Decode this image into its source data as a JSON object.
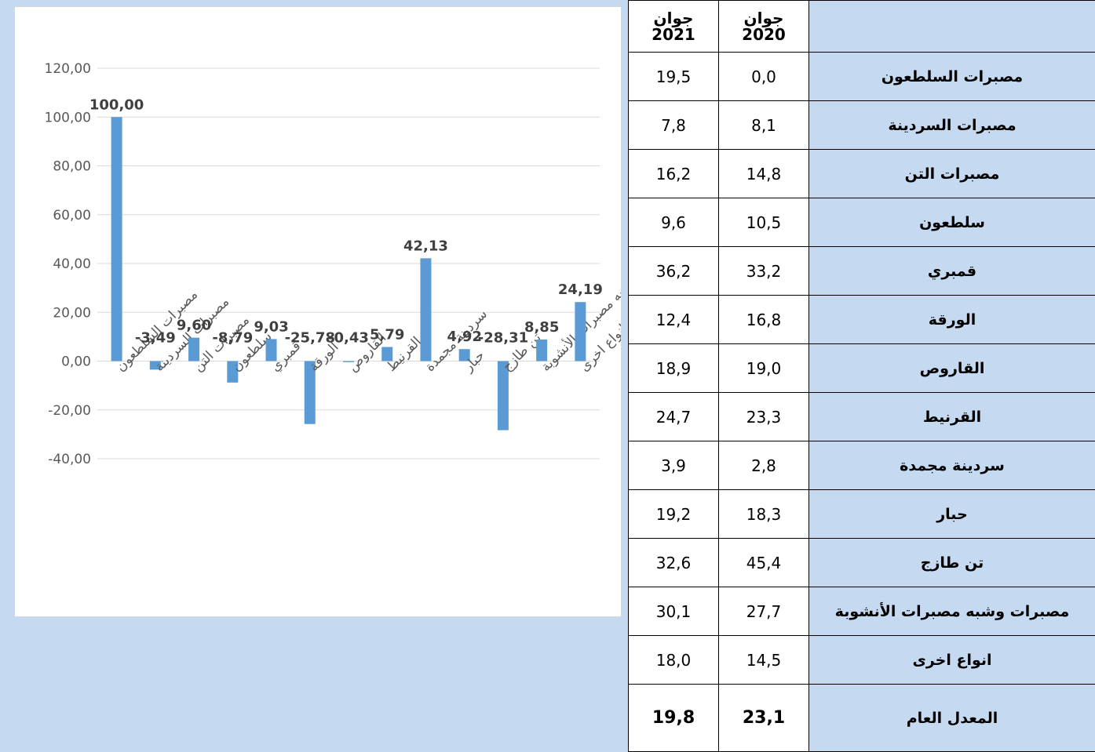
{
  "chart_data": {
    "type": "bar",
    "categories": [
      "مصبرات السلطعون",
      "مصبرات السردينة",
      "مصبرات التن",
      "سلطعون",
      "قمبري",
      "الورقة",
      "القاروص",
      "القرنيط",
      "سردينة مجمدة",
      "حبار",
      "تن طازج",
      "مصبرات وشبه مصبرات الأنشوبة",
      "انواع اخرى"
    ],
    "values": [
      100,
      -3.49,
      9.6,
      -8.79,
      9.03,
      -25.78,
      -0.43,
      5.79,
      42.13,
      4.92,
      -28.31,
      8.85,
      24.19
    ],
    "value_labels": [
      "100,00",
      "-3,49",
      "9,60",
      "-8,79",
      "9,03",
      "-25,78",
      "-0,43",
      "5,79",
      "42,13",
      "4,92",
      "-28,31",
      "8,85",
      "24,19"
    ],
    "color": "#5b9bd5",
    "ylim": [
      -40,
      120
    ],
    "yticks": [
      {
        "value": -40,
        "label": "-40,00"
      },
      {
        "value": -20,
        "label": "-20,00"
      },
      {
        "value": 0,
        "label": "0,00"
      },
      {
        "value": 20,
        "label": "20,00"
      },
      {
        "value": 40,
        "label": "40,00"
      },
      {
        "value": 60,
        "label": "60,00"
      },
      {
        "value": 80,
        "label": "80,00"
      },
      {
        "value": 100,
        "label": "100,00"
      },
      {
        "value": 120,
        "label": "120,00"
      }
    ],
    "grid": true
  },
  "table": {
    "header": [
      {
        "month": "جوان",
        "year": "2021"
      },
      {
        "month": "جوان",
        "year": "2020"
      }
    ],
    "rows": [
      [
        "19,5",
        "0,0",
        "مصبرات السلطعون"
      ],
      [
        "7,8",
        "8,1",
        "مصبرات السردينة"
      ],
      [
        "16,2",
        "14,8",
        "مصبرات التن"
      ],
      [
        "9,6",
        "10,5",
        "سلطعون"
      ],
      [
        "36,2",
        "33,2",
        "قمبري"
      ],
      [
        "12,4",
        "16,8",
        "الورقة"
      ],
      [
        "18,9",
        "19,0",
        "القاروص"
      ],
      [
        "24,7",
        "23,3",
        "القرنيط"
      ],
      [
        "3,9",
        "2,8",
        "سردينة مجمدة"
      ],
      [
        "19,2",
        "18,3",
        "حبار"
      ],
      [
        "32,6",
        "45,4",
        "تن طازج"
      ],
      [
        "30,1",
        "27,7",
        "مصبرات وشبه مصبرات الأنشوبة"
      ],
      [
        "18,0",
        "14,5",
        "انواع اخرى"
      ]
    ],
    "total": [
      "19,8",
      "23,1",
      "المعدل العام"
    ]
  }
}
